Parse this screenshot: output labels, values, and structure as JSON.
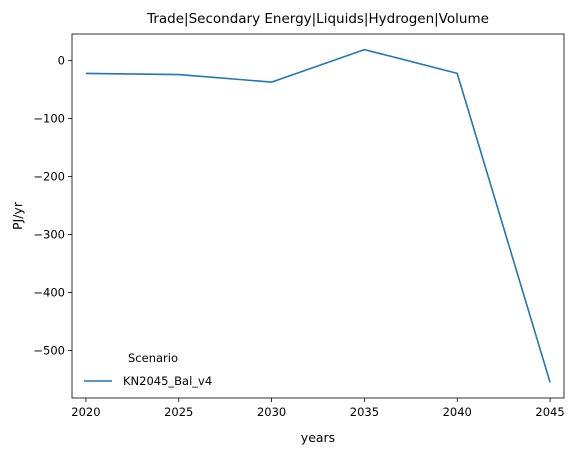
{
  "chart_data": {
    "type": "line",
    "title": "Trade|Secondary Energy|Liquids|Hydrogen|Volume",
    "xlabel": "years",
    "ylabel": "PJ/yr",
    "x": [
      2020,
      2025,
      2030,
      2035,
      2040,
      2045
    ],
    "x_ticks": [
      2020,
      2025,
      2030,
      2035,
      2040,
      2045
    ],
    "y_ticks": [
      0,
      -100,
      -200,
      -300,
      -400,
      -500
    ],
    "xlim": [
      2019.25,
      2045.75
    ],
    "ylim": [
      -582,
      46
    ],
    "series": [
      {
        "name": "KN2045_Bal_v4",
        "color": "#1f77b4",
        "values": [
          -22,
          -24,
          -37,
          19,
          -22,
          -555
        ]
      }
    ],
    "legend": {
      "title": "Scenario",
      "location": "lower-left"
    },
    "grid": false
  }
}
